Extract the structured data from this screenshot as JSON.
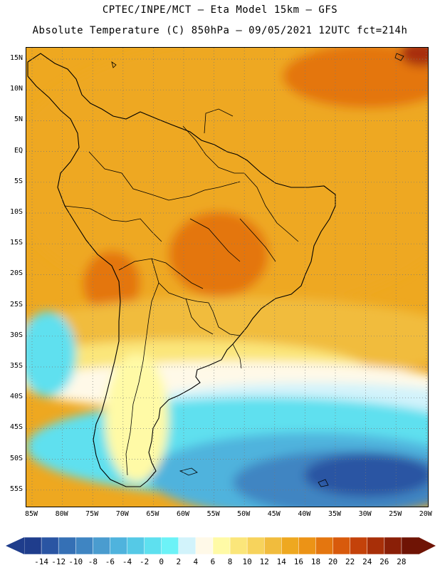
{
  "title_line1": "CPTEC/INPE/MCT –  Eta Model 15km – GFS",
  "title_line2": "Absolute Temperature (C) 850hPa – 09/05/2021 12UTC fct=214h",
  "latitude_labels": [
    "15N",
    "10N",
    "5N",
    "EQ",
    "5S",
    "10S",
    "15S",
    "20S",
    "25S",
    "30S",
    "35S",
    "40S",
    "45S",
    "50S",
    "55S"
  ],
  "longitude_labels": [
    "85W",
    "80W",
    "75W",
    "70W",
    "65W",
    "60W",
    "55W",
    "50W",
    "45W",
    "40W",
    "35W",
    "30W",
    "25W",
    "20W"
  ],
  "colorbar": {
    "labels": [
      "-14",
      "-12",
      "-10",
      "-8",
      "-6",
      "-4",
      "-2",
      "0",
      "2",
      "4",
      "6",
      "8",
      "10",
      "12",
      "14",
      "16",
      "18",
      "20",
      "22",
      "24",
      "26",
      "28"
    ],
    "colors": [
      "#1f3d8c",
      "#2a55a3",
      "#3570b5",
      "#3f85c2",
      "#4a9ccf",
      "#4fb3dd",
      "#55c9e6",
      "#5ee0ef",
      "#6cf2f7",
      "#d2f3fb",
      "#fff9e8",
      "#fffaa6",
      "#fbe67a",
      "#f7d35c",
      "#f1bc3d",
      "#eea820",
      "#ec9316",
      "#e4760f",
      "#d85a0c",
      "#c4420a",
      "#a82f08",
      "#8a1f07",
      "#6f1405"
    ]
  },
  "map": {
    "field_colors": {
      "deep_blue": "#2a55a3",
      "blue": "#3f85c2",
      "mid_blue": "#4fb3dd",
      "cyan": "#5ee0ef",
      "light_cyan": "#d2f3fb",
      "cream": "#fff9e8",
      "light_yellow": "#fffaa6",
      "yellow": "#fbe67a",
      "gold": "#f1bc3d",
      "orange": "#eea820",
      "dark_orange": "#e4760f",
      "red_orange": "#d85a0c",
      "dark_red": "#a82f08"
    }
  }
}
